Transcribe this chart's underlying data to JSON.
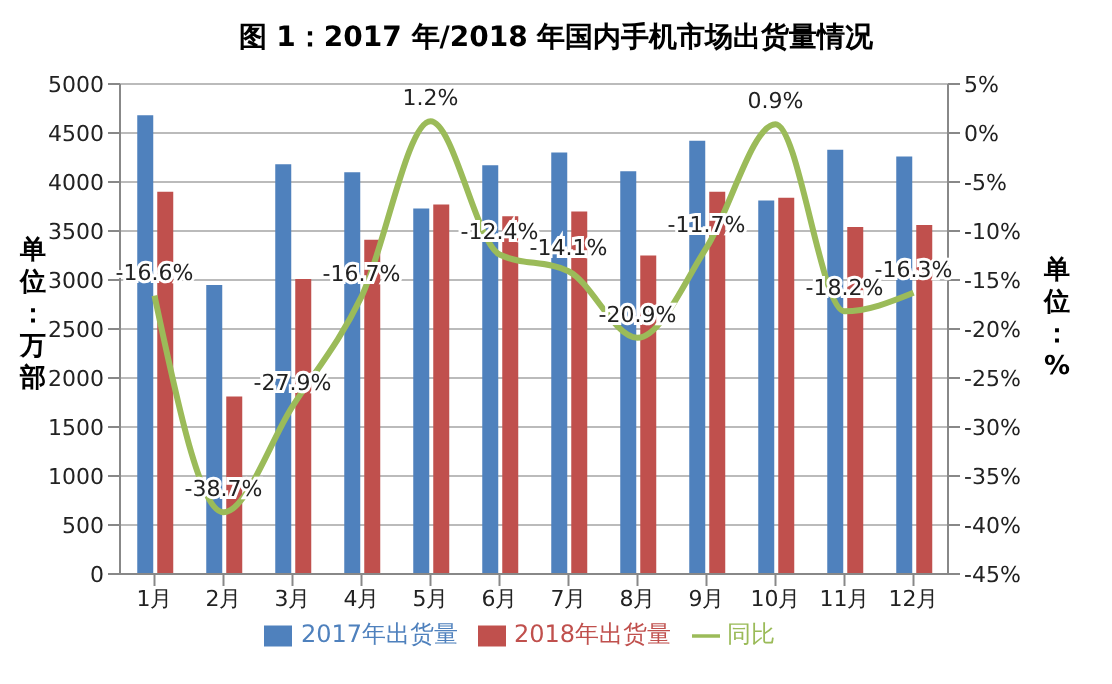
{
  "chart_data": {
    "type": "bar",
    "title": "图 1：2017 年/2018 年国内手机市场出货量情况",
    "ylabel": "单位：万部",
    "y2label": "单位：%",
    "categories": [
      "1月",
      "2月",
      "3月",
      "4月",
      "5月",
      "6月",
      "7月",
      "8月",
      "9月",
      "10月",
      "11月",
      "12月"
    ],
    "series": [
      {
        "name": "2017年出货量",
        "color": "#4f81bd",
        "values": [
          4680,
          2950,
          4180,
          4100,
          3730,
          4170,
          4300,
          4110,
          4420,
          3810,
          4330,
          4260
        ]
      },
      {
        "name": "2018年出货量",
        "color": "#c0504d",
        "values": [
          3900,
          1810,
          3010,
          3410,
          3770,
          3650,
          3700,
          3250,
          3900,
          3840,
          3540,
          3560
        ]
      },
      {
        "name": "同比",
        "type": "line",
        "axis": "y2",
        "color": "#9bbb59",
        "values": [
          -16.6,
          -38.7,
          -27.9,
          -16.7,
          1.2,
          -12.4,
          -14.1,
          -20.9,
          -11.7,
          0.9,
          -18.2,
          -16.3
        ],
        "value_labels": [
          "-16.6%",
          "-38.7%",
          "-27.9%",
          "-16.7%",
          "1.2%",
          "-12.4%",
          "-14.1%",
          "-20.9%",
          "-11.7%",
          "0.9%",
          "-18.2%",
          "-16.3%"
        ]
      }
    ],
    "ylim": [
      0,
      5000
    ],
    "yticks": [
      0,
      500,
      1000,
      1500,
      2000,
      2500,
      3000,
      3500,
      4000,
      4500,
      5000
    ],
    "y2lim": [
      -45,
      5
    ],
    "y2ticks": [
      {
        "value": 5,
        "label": "5%"
      },
      {
        "value": 0,
        "label": "0%"
      },
      {
        "value": -5,
        "label": "-5%"
      },
      {
        "value": -10,
        "label": "-10%"
      },
      {
        "value": -15,
        "label": "-15%"
      },
      {
        "value": -20,
        "label": "-20%"
      },
      {
        "value": -25,
        "label": "-25%"
      },
      {
        "value": -30,
        "label": "-30%"
      },
      {
        "value": -35,
        "label": "-35%"
      },
      {
        "value": -40,
        "label": "-40%"
      },
      {
        "value": -45,
        "label": "-45%"
      }
    ],
    "grid": "y",
    "legend": "bottom"
  }
}
